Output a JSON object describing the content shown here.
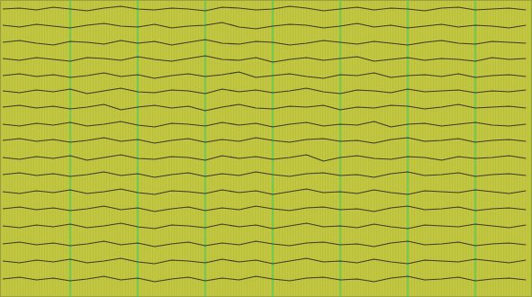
{
  "chart_data": {
    "type": "line",
    "color": "#3b3a2c",
    "grid": true,
    "tick_labels": false,
    "xlim": [
      -0.04,
      7.84
    ],
    "xticks": [
      1,
      2,
      3,
      4,
      5,
      6,
      7
    ],
    "ylim": [
      0,
      330
    ],
    "yticks": [],
    "x": [
      0,
      0.25,
      0.5,
      0.75,
      1,
      1.25,
      1.5,
      1.75,
      2,
      2.25,
      2.5,
      2.75,
      3,
      3.25,
      3.5,
      3.75,
      4,
      4.25,
      4.5,
      4.75,
      5,
      5.25,
      5.5,
      5.75,
      6,
      6.25,
      6.5,
      6.75,
      7,
      7.25,
      7.5,
      7.75
    ],
    "series": [
      {
        "values": [
          320,
          321,
          319,
          322,
          320,
          318,
          321,
          323,
          320,
          319,
          321,
          320,
          318,
          322,
          321,
          319,
          320,
          323,
          321,
          318,
          320,
          322,
          319,
          321,
          320,
          318,
          321,
          322,
          319,
          320,
          321,
          319
        ]
      },
      {
        "values": [
          302,
          300,
          303,
          301,
          299,
          302,
          304,
          301,
          300,
          303,
          299,
          301,
          302,
          305,
          300,
          298,
          301,
          303,
          302,
          299,
          301,
          304,
          300,
          302,
          299,
          301,
          303,
          300,
          302,
          301,
          299,
          302
        ]
      },
      {
        "values": [
          283,
          285,
          282,
          280,
          284,
          283,
          281,
          285,
          282,
          284,
          280,
          283,
          286,
          282,
          281,
          284,
          283,
          280,
          282,
          285,
          283,
          281,
          284,
          282,
          280,
          283,
          285,
          282,
          281,
          284,
          283,
          282
        ]
      },
      {
        "values": [
          265,
          263,
          266,
          264,
          262,
          266,
          265,
          263,
          267,
          264,
          262,
          265,
          268,
          264,
          263,
          266,
          261,
          264,
          266,
          263,
          265,
          267,
          262,
          264,
          266,
          263,
          265,
          264,
          262,
          266,
          264,
          265
        ]
      },
      {
        "values": [
          246,
          248,
          245,
          247,
          244,
          246,
          249,
          245,
          247,
          243,
          246,
          248,
          245,
          247,
          250,
          244,
          246,
          248,
          245,
          243,
          247,
          246,
          249,
          244,
          246,
          247,
          245,
          248,
          244,
          246,
          247,
          245
        ]
      },
      {
        "values": [
          229,
          227,
          230,
          228,
          231,
          226,
          229,
          232,
          228,
          227,
          230,
          229,
          226,
          231,
          228,
          230,
          227,
          229,
          232,
          228,
          226,
          230,
          229,
          227,
          231,
          228,
          229,
          230,
          227,
          229,
          228,
          230
        ]
      },
      {
        "values": [
          211,
          213,
          210,
          212,
          209,
          211,
          214,
          208,
          211,
          213,
          210,
          212,
          207,
          211,
          214,
          210,
          209,
          212,
          211,
          213,
          208,
          211,
          210,
          213,
          212,
          209,
          211,
          214,
          210,
          211,
          212,
          210
        ]
      },
      {
        "values": [
          192,
          190,
          193,
          191,
          194,
          190,
          192,
          195,
          191,
          189,
          193,
          192,
          190,
          194,
          191,
          193,
          189,
          192,
          194,
          190,
          192,
          191,
          195,
          189,
          192,
          193,
          190,
          192,
          194,
          191,
          190,
          192
        ]
      },
      {
        "values": [
          174,
          176,
          173,
          175,
          172,
          174,
          177,
          173,
          175,
          171,
          174,
          176,
          172,
          175,
          173,
          177,
          174,
          172,
          175,
          176,
          173,
          174,
          171,
          175,
          177,
          173,
          174,
          176,
          172,
          174,
          175,
          173
        ]
      },
      {
        "values": [
          155,
          153,
          156,
          154,
          157,
          152,
          155,
          158,
          154,
          153,
          156,
          155,
          152,
          157,
          154,
          156,
          153,
          155,
          158,
          151,
          155,
          157,
          154,
          153,
          156,
          155,
          152,
          156,
          154,
          155,
          157,
          154
        ]
      },
      {
        "values": [
          136,
          138,
          135,
          137,
          134,
          136,
          139,
          135,
          137,
          133,
          136,
          138,
          134,
          137,
          135,
          139,
          136,
          134,
          137,
          138,
          135,
          136,
          133,
          137,
          139,
          135,
          136,
          138,
          134,
          136,
          137,
          135
        ]
      },
      {
        "values": [
          117,
          115,
          118,
          116,
          119,
          115,
          117,
          120,
          116,
          114,
          118,
          117,
          115,
          119,
          116,
          118,
          114,
          117,
          120,
          116,
          117,
          115,
          119,
          116,
          114,
          118,
          117,
          116,
          119,
          117,
          115,
          118
        ]
      },
      {
        "values": [
          98,
          100,
          97,
          99,
          96,
          98,
          101,
          97,
          99,
          95,
          98,
          100,
          96,
          99,
          97,
          101,
          98,
          96,
          99,
          100,
          97,
          98,
          95,
          99,
          101,
          97,
          98,
          100,
          96,
          98,
          99,
          97
        ]
      },
      {
        "values": [
          79,
          77,
          80,
          78,
          81,
          77,
          79,
          82,
          78,
          76,
          80,
          79,
          77,
          81,
          78,
          80,
          76,
          79,
          82,
          78,
          79,
          77,
          81,
          78,
          76,
          80,
          79,
          78,
          81,
          79,
          77,
          80
        ]
      },
      {
        "values": [
          59,
          61,
          58,
          60,
          57,
          59,
          62,
          58,
          60,
          56,
          59,
          61,
          57,
          60,
          58,
          62,
          59,
          57,
          60,
          61,
          58,
          59,
          56,
          60,
          62,
          58,
          59,
          61,
          57,
          59,
          60,
          58
        ]
      },
      {
        "values": [
          40,
          38,
          41,
          39,
          42,
          38,
          40,
          43,
          39,
          37,
          41,
          40,
          38,
          42,
          39,
          41,
          37,
          40,
          43,
          39,
          40,
          38,
          42,
          39,
          37,
          41,
          40,
          39,
          42,
          40,
          38,
          41
        ]
      },
      {
        "values": [
          20,
          22,
          19,
          21,
          18,
          20,
          23,
          19,
          21,
          17,
          20,
          22,
          18,
          21,
          19,
          23,
          20,
          18,
          21,
          22,
          19,
          20,
          17,
          21,
          23,
          19,
          20,
          22,
          18,
          20,
          21,
          19
        ]
      }
    ]
  }
}
